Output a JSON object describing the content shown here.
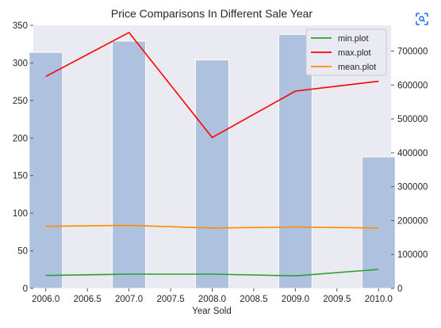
{
  "chart_data": {
    "type": "bar",
    "title": "Price Comparisons In Different Sale Year",
    "xlabel": "Year Sold",
    "ylabel": "",
    "y2label": "",
    "categories": [
      "2006",
      "2007",
      "2008",
      "2009",
      "2010"
    ],
    "bar_x": [
      2006,
      2007,
      2008,
      2009,
      2010
    ],
    "bar_values": [
      314,
      329,
      304,
      338,
      175
    ],
    "bar_color": "#aec2df",
    "xlim": [
      2005.85,
      2010.15
    ],
    "ylim": [
      0,
      350
    ],
    "y2lim": [
      0,
      776000
    ],
    "xticks": [
      2006.0,
      2006.5,
      2007.0,
      2007.5,
      2008.0,
      2008.5,
      2009.0,
      2009.5,
      2010.0
    ],
    "xtick_labels": [
      "2006.0",
      "2006.5",
      "2007.0",
      "2007.5",
      "2008.0",
      "2008.5",
      "2009.0",
      "2009.5",
      "2010.0"
    ],
    "yticks": [
      0,
      50,
      100,
      150,
      200,
      250,
      300,
      350
    ],
    "ytick_labels": [
      "0",
      "50",
      "100",
      "150",
      "200",
      "250",
      "300",
      "350"
    ],
    "y2ticks": [
      0,
      100000,
      200000,
      300000,
      400000,
      500000,
      600000,
      700000
    ],
    "y2tick_labels": [
      "0",
      "100000",
      "200000",
      "300000",
      "400000",
      "500000",
      "600000",
      "700000"
    ],
    "series": [
      {
        "name": "min.plot",
        "color": "#2ca02c",
        "x": [
          2006,
          2007,
          2008,
          2009,
          2010
        ],
        "values": [
          38000,
          42000,
          42000,
          37000,
          56000
        ]
      },
      {
        "name": "max.plot",
        "color": "#ff0000",
        "x": [
          2006,
          2007,
          2008,
          2009,
          2010
        ],
        "values": [
          625000,
          755000,
          445000,
          582000,
          611000
        ]
      },
      {
        "name": "mean.plot",
        "color": "#ff8c00",
        "x": [
          2006,
          2007,
          2008,
          2009,
          2010
        ],
        "values": [
          183000,
          186000,
          178000,
          181000,
          178000
        ]
      }
    ],
    "grid": false,
    "legend_position": "upper right",
    "plot_background": "#eaeaf2"
  },
  "toolbar": {
    "icon": "screenshot-scan-icon"
  }
}
